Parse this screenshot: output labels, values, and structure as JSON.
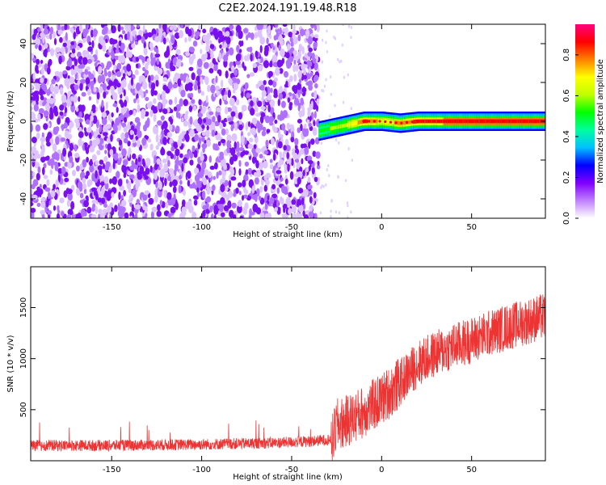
{
  "title": "C2E2.2024.191.19.48.R18",
  "chart_data": [
    {
      "type": "heatmap",
      "xlabel": "Height of straight line (km)",
      "ylabel": "Frequency (Hz)",
      "xlim": [
        -195,
        91
      ],
      "ylim": [
        -50,
        50
      ],
      "xticks": [
        -150,
        -100,
        -50,
        0,
        50
      ],
      "yticks": [
        -40,
        -20,
        0,
        20,
        40
      ],
      "colorbar": {
        "label": "Normalized spectral amplitude",
        "range": [
          0.0,
          0.95
        ],
        "ticks": [
          0.0,
          0.2,
          0.4,
          0.6,
          0.8
        ],
        "colors": [
          "#ffffff",
          "#c080ff",
          "#8000ff",
          "#0000ff",
          "#00c0ff",
          "#00ffa0",
          "#00ff00",
          "#c0ff00",
          "#ffff00",
          "#ff8000",
          "#ff0000",
          "#ff0080"
        ]
      },
      "noise_region_x": [
        -195,
        -35
      ],
      "noise_level": 0.25,
      "carrier_track": [
        {
          "x": -35,
          "freq": -5,
          "amp": 0.5
        },
        {
          "x": -30,
          "freq": -4,
          "amp": 0.55
        },
        {
          "x": -25,
          "freq": -3,
          "amp": 0.6
        },
        {
          "x": -20,
          "freq": -2,
          "amp": 0.65
        },
        {
          "x": -15,
          "freq": -1,
          "amp": 0.7
        },
        {
          "x": -10,
          "freq": 0,
          "amp": 0.85
        },
        {
          "x": 0,
          "freq": 0,
          "amp": 0.7
        },
        {
          "x": 10,
          "freq": -1,
          "amp": 0.75
        },
        {
          "x": 20,
          "freq": 0,
          "amp": 0.85
        },
        {
          "x": 50,
          "freq": 0,
          "amp": 0.88
        },
        {
          "x": 91,
          "freq": 0,
          "amp": 0.88
        }
      ]
    },
    {
      "type": "line",
      "xlabel": "Height of straight line (km)",
      "ylabel": "SNR (10 * v/v)",
      "xlim": [
        -195,
        91
      ],
      "ylim": [
        0,
        1900
      ],
      "xticks": [
        -150,
        -100,
        -50,
        0,
        50
      ],
      "yticks": [
        500,
        1000,
        1500
      ],
      "series": [
        {
          "color": "#ee3333",
          "x": [
            -195,
            -150,
            -100,
            -60,
            -40,
            -27,
            -25,
            -20,
            -10,
            0,
            10,
            20,
            30,
            40,
            50,
            60,
            70,
            80,
            91
          ],
          "values": [
            150,
            150,
            160,
            175,
            190,
            210,
            350,
            380,
            480,
            600,
            760,
            950,
            1050,
            1120,
            1180,
            1250,
            1310,
            1360,
            1420
          ]
        }
      ]
    }
  ]
}
